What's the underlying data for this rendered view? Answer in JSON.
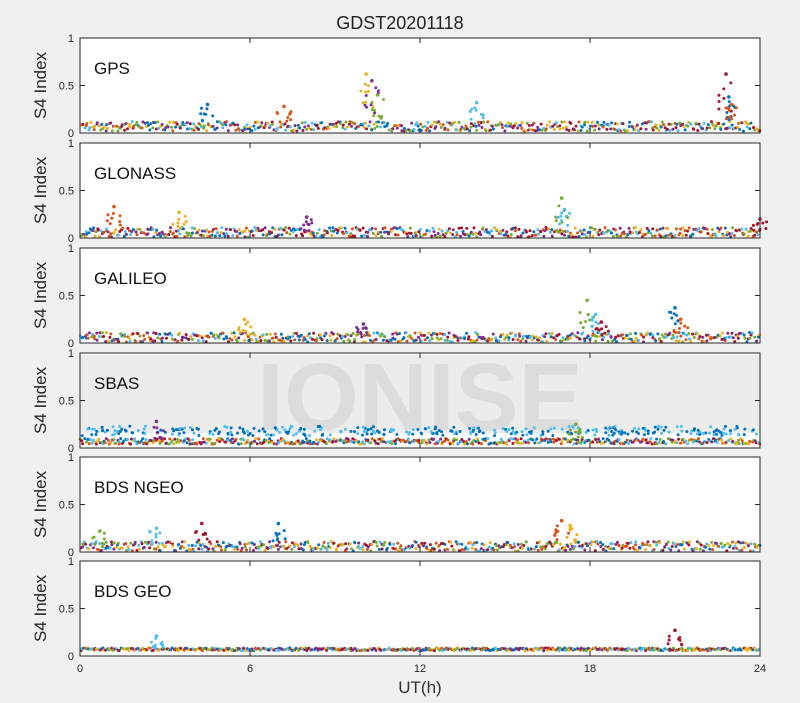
{
  "chart_data": {
    "type": "scatter",
    "title": "GDST20201118",
    "xlabel": "UT(h)",
    "ylabel": "S4 Index",
    "xlim": [
      0,
      24
    ],
    "ylim": [
      0,
      1
    ],
    "xticks": [
      "0",
      "6",
      "12",
      "18",
      "24"
    ],
    "yticks": [
      "0",
      "0.5",
      "1"
    ],
    "watermark": "IONISE",
    "colors": [
      "#0072BD",
      "#D95319",
      "#EDB120",
      "#7E2F8E",
      "#77AC30",
      "#4DBEEE",
      "#A2142F"
    ],
    "panels": [
      {
        "label": "GPS",
        "baseline": 0.07,
        "spread": 0.05,
        "peaks": [
          {
            "x": 4.5,
            "y": 0.3
          },
          {
            "x": 7.2,
            "y": 0.28
          },
          {
            "x": 10.1,
            "y": 0.62
          },
          {
            "x": 10.3,
            "y": 0.55
          },
          {
            "x": 10.5,
            "y": 0.4
          },
          {
            "x": 14.0,
            "y": 0.32
          },
          {
            "x": 22.8,
            "y": 0.62
          },
          {
            "x": 22.9,
            "y": 0.38
          },
          {
            "x": 23.0,
            "y": 0.3
          }
        ]
      },
      {
        "label": "GLONASS",
        "baseline": 0.06,
        "spread": 0.05,
        "peaks": [
          {
            "x": 1.2,
            "y": 0.33
          },
          {
            "x": 3.5,
            "y": 0.27
          },
          {
            "x": 8.0,
            "y": 0.22
          },
          {
            "x": 17.0,
            "y": 0.42
          },
          {
            "x": 17.1,
            "y": 0.3
          },
          {
            "x": 24.0,
            "y": 0.2
          }
        ]
      },
      {
        "label": "GALILEO",
        "baseline": 0.06,
        "spread": 0.05,
        "peaks": [
          {
            "x": 5.8,
            "y": 0.25
          },
          {
            "x": 10.0,
            "y": 0.2
          },
          {
            "x": 17.9,
            "y": 0.45
          },
          {
            "x": 18.2,
            "y": 0.3
          },
          {
            "x": 18.4,
            "y": 0.22
          },
          {
            "x": 21.0,
            "y": 0.37
          },
          {
            "x": 21.2,
            "y": 0.25
          }
        ]
      },
      {
        "label": "SBAS",
        "baseline": 0.07,
        "spread": 0.03,
        "band": {
          "y": 0.18,
          "spread": 0.05
        },
        "peaks": [
          {
            "x": 2.7,
            "y": 0.28
          },
          {
            "x": 17.5,
            "y": 0.25
          }
        ]
      },
      {
        "label": "BDS NGEO",
        "baseline": 0.06,
        "spread": 0.05,
        "peaks": [
          {
            "x": 0.7,
            "y": 0.22
          },
          {
            "x": 2.7,
            "y": 0.25
          },
          {
            "x": 4.3,
            "y": 0.3
          },
          {
            "x": 7.0,
            "y": 0.3
          },
          {
            "x": 17.0,
            "y": 0.33
          },
          {
            "x": 17.3,
            "y": 0.28
          }
        ]
      },
      {
        "label": "BDS GEO",
        "baseline": 0.07,
        "spread": 0.015,
        "peaks": [
          {
            "x": 2.7,
            "y": 0.21
          },
          {
            "x": 21.0,
            "y": 0.27
          }
        ]
      }
    ]
  }
}
